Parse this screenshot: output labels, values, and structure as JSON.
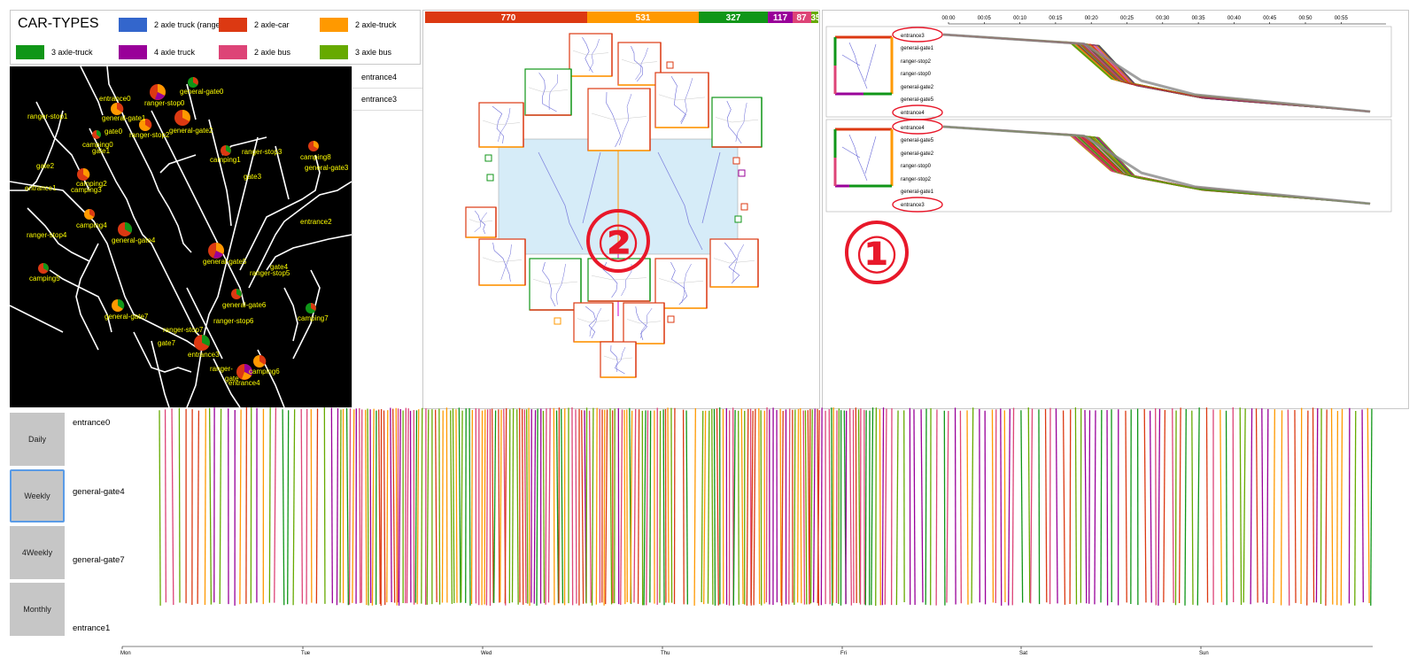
{
  "legend": {
    "title": "CAR-TYPES",
    "items": [
      {
        "label": "2 axle truck (ranger)",
        "color": "#3366cc"
      },
      {
        "label": "2 axle-car",
        "color": "#dc3912"
      },
      {
        "label": "2 axle-truck",
        "color": "#ff9900"
      },
      {
        "label": "3 axle-truck",
        "color": "#109618"
      },
      {
        "label": "4 axle truck",
        "color": "#990099"
      },
      {
        "label": "2 axle bus",
        "color": "#dd4477"
      },
      {
        "label": "3 axle bus",
        "color": "#66aa00"
      }
    ]
  },
  "selected_locations": [
    "entrance4",
    "entrance3"
  ],
  "map_labels": [
    "entrance0",
    "general-gate0",
    "ranger-stop0",
    "ranger-stop1",
    "general-gate1",
    "gate0",
    "ranger-stop2",
    "general-gate2",
    "camping0",
    "gate1",
    "camping1",
    "ranger-stop3",
    "camping8",
    "general-gate3",
    "gate2",
    "camping2",
    "entrance1",
    "camping3",
    "gate3",
    "entrance2",
    "camping4",
    "ranger-stop4",
    "general-gate4",
    "general-gate5",
    "camping5",
    "gate4",
    "ranger-stop5",
    "general-gate6",
    "camping7",
    "general-gate7",
    "ranger-stop6",
    "ranger-stop7",
    "gate7",
    "entrance3",
    "ranger-",
    "gate",
    "camping6",
    "entrance4"
  ],
  "totals_bar": [
    {
      "value": 770,
      "color": "#dc3912"
    },
    {
      "value": 531,
      "color": "#ff9900"
    },
    {
      "value": 327,
      "color": "#109618"
    },
    {
      "value": 117,
      "color": "#990099"
    },
    {
      "value": 87,
      "color": "#dd4477"
    },
    {
      "value": 35,
      "color": "#66aa00"
    }
  ],
  "center_annotation": "②",
  "right_annotation": "①",
  "time_axis": [
    "00:00",
    "00:05",
    "00:10",
    "00:15",
    "00:20",
    "00:25",
    "00:30",
    "00:35",
    "00:40",
    "00:45",
    "00:50",
    "00:55"
  ],
  "trajectory_1": [
    "entrance3",
    "general-gate1",
    "ranger-stop2",
    "ranger-stop0",
    "general-gate2",
    "general-gate5",
    "entrance4"
  ],
  "trajectory_2": [
    "entrance4",
    "general-gate5",
    "general-gate2",
    "ranger-stop0",
    "ranger-stop2",
    "general-gate1",
    "entrance3"
  ],
  "buttons": [
    "Daily",
    "Weekly",
    "4Weekly",
    "Monthly"
  ],
  "active_button": "Weekly",
  "timeline_locations": [
    "entrance0",
    "general-gate4",
    "general-gate7",
    "entrance1"
  ],
  "days": [
    "Mon",
    "Tue",
    "Wed",
    "Thu",
    "Fri",
    "Sat",
    "Sun"
  ]
}
